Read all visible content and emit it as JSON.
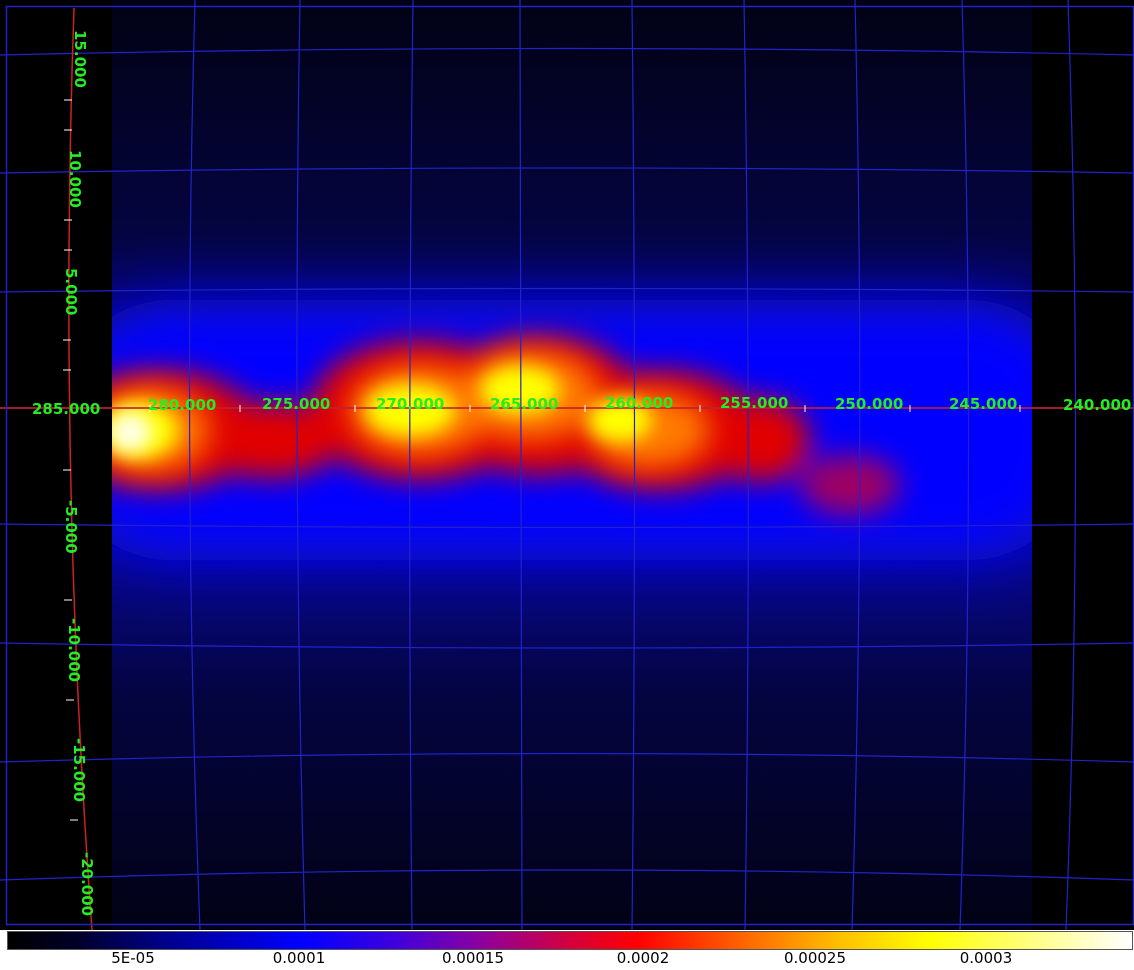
{
  "map": {
    "projection": "galactic grid",
    "grid_color": "#2222cc",
    "label_color": "#22ee22",
    "axis_color": "#cc2222",
    "longitude_labels": [
      "285.000",
      "280.000",
      "275.000",
      "270.000",
      "265.000",
      "260.000",
      "255.000",
      "250.000",
      "245.000",
      "240.000"
    ],
    "latitude_labels": [
      "15.000",
      "10.000",
      "5.000",
      "-5.000",
      "-10.000",
      "-15.000",
      "-20.000"
    ]
  },
  "colorbar": {
    "colormap": "heat (black-blue-red-yellow-white)",
    "tick_labels": [
      "5E-05",
      "0.0001",
      "0.00015",
      "0.0002",
      "0.00025",
      "0.0003"
    ],
    "tick_values": [
      5e-05,
      0.0001,
      0.00015,
      0.0002,
      0.00025,
      0.0003
    ],
    "range": [
      0.0,
      0.00034
    ]
  }
}
